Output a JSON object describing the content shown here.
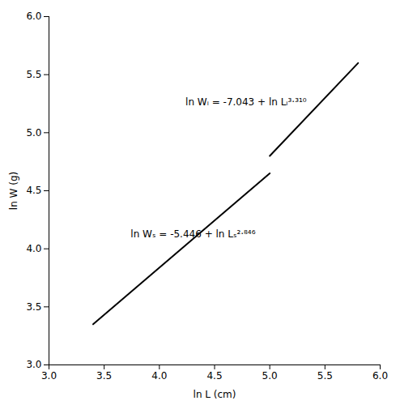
{
  "chart_data": {
    "type": "line",
    "x_label": "ln L (cm)",
    "y_label": "ln W (g)",
    "series": [
      {
        "x": [
          3.4,
          5.0
        ],
        "values": [
          3.35,
          4.65
        ],
        "color": "#000000"
      },
      {
        "x": [
          5.0,
          5.8
        ],
        "values": [
          4.8,
          5.6
        ],
        "color": "#000000"
      }
    ],
    "xlim": [
      3,
      6
    ],
    "ylim": [
      3,
      6
    ],
    "xticks": [
      3,
      3.5,
      4,
      4.5,
      5,
      5.5,
      6
    ],
    "yticks": [
      3,
      3.5,
      4,
      4.5,
      5,
      5.5,
      6
    ],
    "annotations": [
      "ln Wₛ = -5.446 + ln Lₛ²·⁸⁴⁶",
      "ln Wᵢ = -7.043 + ln Lᵢ³·³¹⁰"
    ],
    "grid": false
  }
}
